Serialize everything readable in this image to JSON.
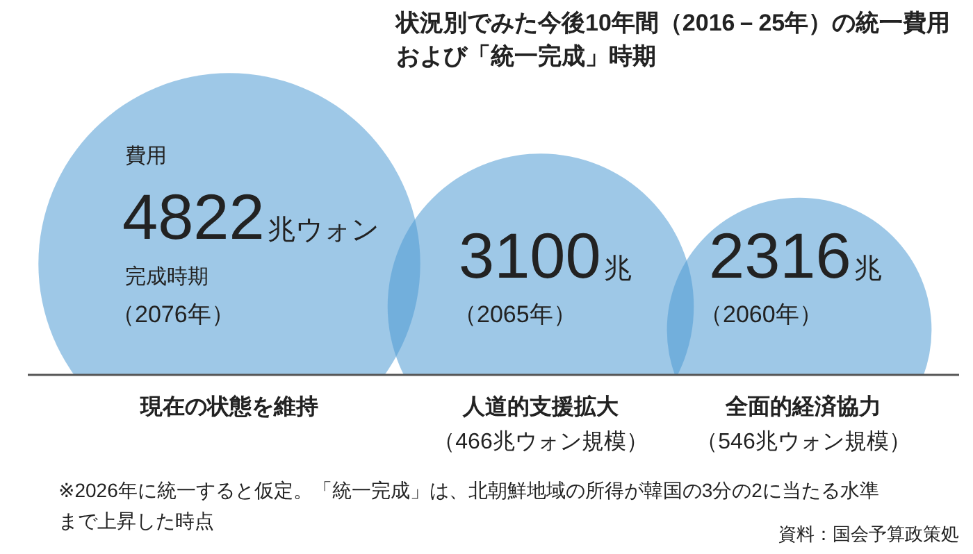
{
  "chart_data": {
    "type": "other",
    "title": "状況別でみた今後10年間（2016－25年）の統一費用および「統一完成」時期",
    "categories": [
      "現在の状態を維持",
      "人道的支援拡大",
      "全面的経済協力"
    ],
    "values": [
      4822,
      3100,
      2316
    ],
    "value_labels": [
      "4822兆ウォン",
      "3100兆",
      "2316兆"
    ],
    "color": "#4f9bd3",
    "annotations": [
      "費用",
      "完成時期",
      "（2076年）",
      "（2065年）",
      "（2060年）",
      "（466兆ウォン規模）",
      "（546兆ウォン規模）",
      "※2026年に統一すると仮定。「統一完成」は、北朝鮮地域の所得が韓国の3分の2に当たる水準まで上昇した時点",
      "資料：国会予算政策処"
    ]
  }
}
